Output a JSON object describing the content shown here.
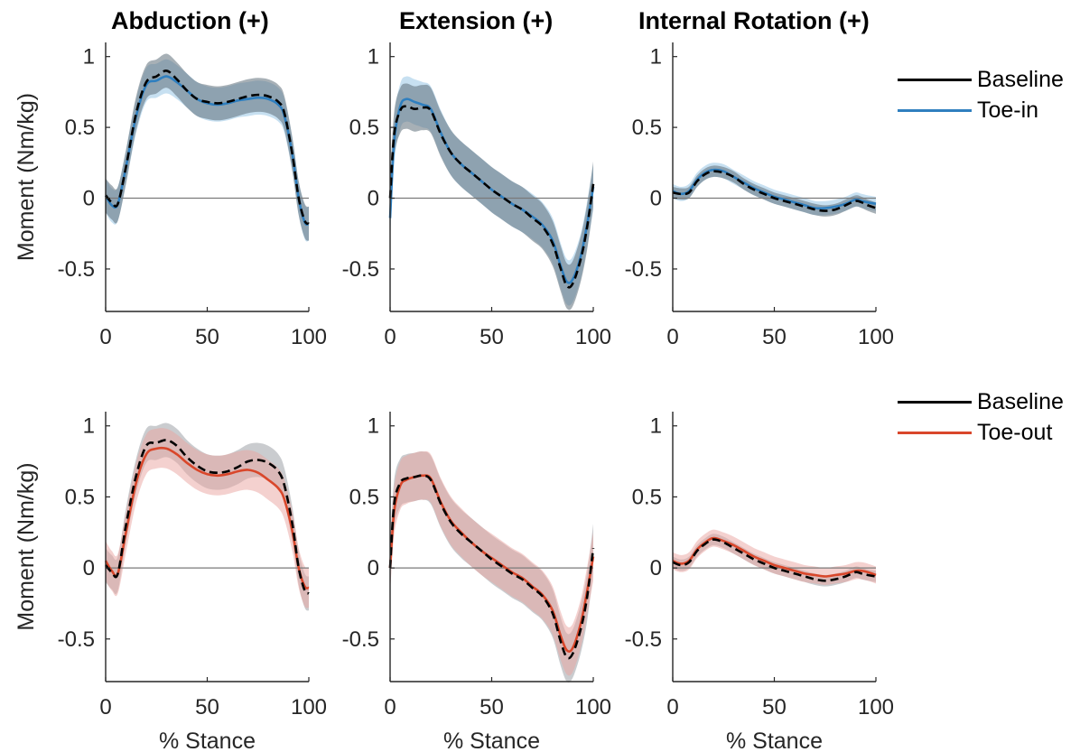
{
  "columns": [
    {
      "title": "Abduction (+)"
    },
    {
      "title": "Extension (+)"
    },
    {
      "title": "Internal Rotation (+)"
    }
  ],
  "legends": [
    {
      "items": [
        {
          "label": "Baseline",
          "color": "#000000"
        },
        {
          "label": "Toe-in",
          "color": "#2f7fbf"
        }
      ]
    },
    {
      "items": [
        {
          "label": "Baseline",
          "color": "#000000"
        },
        {
          "label": "Toe-out",
          "color": "#d9472b"
        }
      ]
    }
  ],
  "colors": {
    "baseline": "#000000",
    "toe_in": "#2f7fbf",
    "toe_out": "#d9472b",
    "band_baseline": "#5f6f7a",
    "band_toe_in": "#8fc1e3",
    "band_toe_out": "#e9a3a0",
    "band_baseline_row2": "#8a8f94"
  },
  "chart_data": [
    {
      "type": "line",
      "title": "Abduction (+)",
      "xlabel": "",
      "ylabel": "Moment (Nm/kg)",
      "xlim": [
        0,
        100
      ],
      "ylim": [
        -0.8,
        1.1
      ],
      "xticks": [
        "0",
        "50",
        "100"
      ],
      "yticks": [
        "1",
        "0.5",
        "0",
        "-0.5"
      ],
      "x": [
        0,
        3,
        6,
        10,
        15,
        20,
        25,
        30,
        35,
        40,
        45,
        50,
        55,
        60,
        65,
        70,
        75,
        80,
        85,
        88,
        92,
        95,
        98,
        100
      ],
      "series": [
        {
          "name": "Baseline",
          "style": "dashed",
          "values": [
            0.02,
            -0.03,
            -0.04,
            0.22,
            0.6,
            0.82,
            0.86,
            0.9,
            0.84,
            0.76,
            0.7,
            0.68,
            0.67,
            0.68,
            0.7,
            0.72,
            0.73,
            0.72,
            0.68,
            0.6,
            0.3,
            0.0,
            -0.16,
            -0.18
          ],
          "band": 0.12
        },
        {
          "name": "Toe-in",
          "style": "solid",
          "values": [
            0.02,
            -0.05,
            -0.04,
            0.22,
            0.58,
            0.8,
            0.83,
            0.86,
            0.82,
            0.76,
            0.7,
            0.67,
            0.66,
            0.67,
            0.69,
            0.7,
            0.71,
            0.7,
            0.66,
            0.58,
            0.3,
            0.0,
            -0.17,
            -0.18
          ],
          "band": 0.12
        }
      ]
    },
    {
      "type": "line",
      "title": "Extension (+)",
      "xlabel": "",
      "ylabel": "",
      "xlim": [
        0,
        100
      ],
      "ylim": [
        -0.8,
        1.1
      ],
      "xticks": [
        "0",
        "50",
        "100"
      ],
      "yticks": [
        "1",
        "0.5",
        "0",
        "-0.5"
      ],
      "x": [
        0,
        2,
        5,
        8,
        12,
        16,
        20,
        25,
        30,
        35,
        40,
        45,
        50,
        55,
        60,
        65,
        70,
        75,
        80,
        84,
        87,
        90,
        94,
        97,
        100
      ],
      "series": [
        {
          "name": "Baseline",
          "style": "dashed",
          "values": [
            0.0,
            0.45,
            0.62,
            0.65,
            0.63,
            0.64,
            0.62,
            0.45,
            0.32,
            0.24,
            0.18,
            0.12,
            0.06,
            0.01,
            -0.04,
            -0.08,
            -0.14,
            -0.2,
            -0.32,
            -0.5,
            -0.62,
            -0.6,
            -0.42,
            -0.2,
            0.1
          ],
          "band": 0.16
        },
        {
          "name": "Toe-in",
          "style": "solid",
          "values": [
            -0.14,
            0.4,
            0.65,
            0.7,
            0.68,
            0.66,
            0.63,
            0.46,
            0.32,
            0.24,
            0.18,
            0.12,
            0.06,
            0.01,
            -0.04,
            -0.08,
            -0.13,
            -0.19,
            -0.3,
            -0.48,
            -0.59,
            -0.57,
            -0.4,
            -0.18,
            0.08
          ],
          "band": 0.16
        }
      ]
    },
    {
      "type": "line",
      "title": "Internal Rotation (+)",
      "xlabel": "",
      "ylabel": "",
      "xlim": [
        0,
        100
      ],
      "ylim": [
        -0.8,
        1.1
      ],
      "xticks": [
        "0",
        "50",
        "100"
      ],
      "yticks": [
        "1",
        "0.5",
        "0",
        "-0.5"
      ],
      "x": [
        0,
        4,
        8,
        12,
        16,
        20,
        25,
        30,
        35,
        40,
        45,
        50,
        55,
        60,
        65,
        70,
        75,
        80,
        85,
        90,
        93,
        96,
        100
      ],
      "series": [
        {
          "name": "Baseline",
          "style": "dashed",
          "values": [
            0.04,
            0.03,
            0.04,
            0.12,
            0.17,
            0.19,
            0.18,
            0.15,
            0.1,
            0.06,
            0.03,
            0.0,
            -0.02,
            -0.04,
            -0.06,
            -0.08,
            -0.09,
            -0.08,
            -0.05,
            -0.02,
            -0.03,
            -0.05,
            -0.07
          ],
          "band": 0.04
        },
        {
          "name": "Toe-in",
          "style": "solid",
          "values": [
            0.05,
            0.03,
            0.05,
            0.13,
            0.18,
            0.2,
            0.19,
            0.15,
            0.11,
            0.07,
            0.04,
            0.01,
            -0.01,
            -0.03,
            -0.05,
            -0.07,
            -0.07,
            -0.06,
            -0.04,
            -0.01,
            -0.02,
            -0.03,
            -0.04
          ],
          "band": 0.05
        }
      ]
    },
    {
      "type": "line",
      "title": "",
      "xlabel": "% Stance",
      "ylabel": "Moment (Nm/kg)",
      "xlim": [
        0,
        100
      ],
      "ylim": [
        -0.8,
        1.1
      ],
      "xticks": [
        "0",
        "50",
        "100"
      ],
      "yticks": [
        "1",
        "0.5",
        "0",
        "-0.5"
      ],
      "x": [
        0,
        3,
        6,
        10,
        15,
        20,
        25,
        30,
        35,
        40,
        45,
        50,
        55,
        60,
        65,
        70,
        75,
        80,
        85,
        88,
        92,
        95,
        98,
        100
      ],
      "series": [
        {
          "name": "Baseline",
          "style": "dashed",
          "values": [
            0.02,
            -0.03,
            -0.04,
            0.3,
            0.65,
            0.86,
            0.88,
            0.9,
            0.86,
            0.78,
            0.72,
            0.68,
            0.67,
            0.68,
            0.71,
            0.75,
            0.76,
            0.74,
            0.68,
            0.58,
            0.3,
            0.0,
            -0.16,
            -0.18
          ],
          "band": 0.12
        },
        {
          "name": "Toe-out",
          "style": "solid",
          "values": [
            0.05,
            -0.02,
            -0.04,
            0.25,
            0.6,
            0.8,
            0.84,
            0.84,
            0.8,
            0.74,
            0.69,
            0.66,
            0.65,
            0.66,
            0.68,
            0.69,
            0.67,
            0.62,
            0.56,
            0.48,
            0.25,
            0.0,
            -0.13,
            -0.14
          ],
          "band": 0.14
        }
      ]
    },
    {
      "type": "line",
      "title": "",
      "xlabel": "% Stance",
      "ylabel": "",
      "xlim": [
        0,
        100
      ],
      "ylim": [
        -0.8,
        1.1
      ],
      "xticks": [
        "0",
        "50",
        "100"
      ],
      "yticks": [
        "1",
        "0.5",
        "0",
        "-0.5"
      ],
      "x": [
        0,
        2,
        5,
        8,
        12,
        16,
        20,
        25,
        30,
        35,
        40,
        45,
        50,
        55,
        60,
        65,
        70,
        75,
        80,
        84,
        87,
        90,
        94,
        97,
        100
      ],
      "series": [
        {
          "name": "Baseline",
          "style": "dashed",
          "values": [
            0.0,
            0.45,
            0.6,
            0.63,
            0.64,
            0.65,
            0.62,
            0.45,
            0.32,
            0.24,
            0.18,
            0.12,
            0.06,
            0.01,
            -0.04,
            -0.08,
            -0.14,
            -0.2,
            -0.32,
            -0.52,
            -0.63,
            -0.6,
            -0.42,
            -0.2,
            0.14
          ],
          "band": 0.17
        },
        {
          "name": "Toe-out",
          "style": "solid",
          "values": [
            0.0,
            0.4,
            0.58,
            0.62,
            0.64,
            0.65,
            0.63,
            0.46,
            0.33,
            0.25,
            0.18,
            0.12,
            0.07,
            0.02,
            -0.03,
            -0.07,
            -0.13,
            -0.19,
            -0.3,
            -0.48,
            -0.58,
            -0.56,
            -0.38,
            -0.16,
            0.08
          ],
          "band": 0.17
        }
      ]
    },
    {
      "type": "line",
      "title": "",
      "xlabel": "% Stance",
      "ylabel": "",
      "xlim": [
        0,
        100
      ],
      "ylim": [
        -0.8,
        1.1
      ],
      "xticks": [
        "0",
        "50",
        "100"
      ],
      "yticks": [
        "1",
        "0.5",
        "0",
        "-0.5"
      ],
      "x": [
        0,
        4,
        8,
        12,
        16,
        20,
        25,
        30,
        35,
        40,
        45,
        50,
        55,
        60,
        65,
        70,
        75,
        80,
        85,
        90,
        93,
        96,
        100
      ],
      "series": [
        {
          "name": "Baseline",
          "style": "dashed",
          "values": [
            0.04,
            0.02,
            0.04,
            0.12,
            0.17,
            0.2,
            0.18,
            0.14,
            0.1,
            0.06,
            0.03,
            0.0,
            -0.02,
            -0.04,
            -0.06,
            -0.08,
            -0.09,
            -0.08,
            -0.06,
            -0.03,
            -0.04,
            -0.05,
            -0.06
          ],
          "band": 0.04
        },
        {
          "name": "Toe-out",
          "style": "solid",
          "values": [
            0.05,
            0.03,
            0.05,
            0.13,
            0.18,
            0.21,
            0.19,
            0.16,
            0.12,
            0.08,
            0.05,
            0.02,
            0.0,
            -0.02,
            -0.04,
            -0.05,
            -0.06,
            -0.05,
            -0.04,
            -0.02,
            -0.02,
            -0.03,
            -0.05
          ],
          "band": 0.06
        }
      ]
    }
  ]
}
